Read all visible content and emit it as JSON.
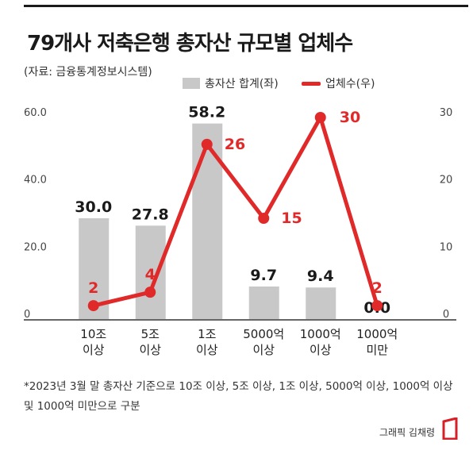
{
  "title": "79개사 저축은행 총자산 규모별 업체수",
  "source": "(자료: 금융통계정보시스템)",
  "legend": {
    "bar_label": "총자산 합계(좌)",
    "line_label": "업체수(우)"
  },
  "footnote_1": "*2023년 3월 말 총자산 기준으로 10조 이상, 5조 이상, 1조 이상, 5000억 이상, 1000억 이상",
  "footnote_2": "및 1000억 미만으로 구분",
  "credit": "그래픽 김채령",
  "colors": {
    "bar": "#c8c8c8",
    "line": "#e02a2a",
    "logo": "#d61f26"
  },
  "chart_data": {
    "type": "bar+line",
    "categories": [
      {
        "line1": "10조",
        "line2": "이상"
      },
      {
        "line1": "5조",
        "line2": "이상"
      },
      {
        "line1": "1조",
        "line2": "이상"
      },
      {
        "line1": "5000억",
        "line2": "이상"
      },
      {
        "line1": "1000억",
        "line2": "이상"
      },
      {
        "line1": "1000억",
        "line2": "미만"
      }
    ],
    "series": [
      {
        "name": "총자산 합계(좌)",
        "type": "bar",
        "axis": "left",
        "values": [
          30.0,
          27.8,
          58.2,
          9.7,
          9.4,
          0.0
        ],
        "labels": [
          "30.0",
          "27.8",
          "58.2",
          "9.7",
          "9.4",
          "0.0"
        ]
      },
      {
        "name": "업체수(우)",
        "type": "line",
        "axis": "right",
        "values": [
          2,
          4,
          26,
          15,
          30,
          2
        ],
        "labels": [
          "2",
          "4",
          "26",
          "15",
          "30",
          "2"
        ]
      }
    ],
    "left_axis": {
      "ylim": [
        0,
        60
      ],
      "ticks": [
        "0",
        "20.0",
        "40.0",
        "60.0"
      ]
    },
    "right_axis": {
      "ylim": [
        0,
        30
      ],
      "ticks": [
        "0",
        "10",
        "20",
        "30"
      ]
    },
    "grid": false
  }
}
